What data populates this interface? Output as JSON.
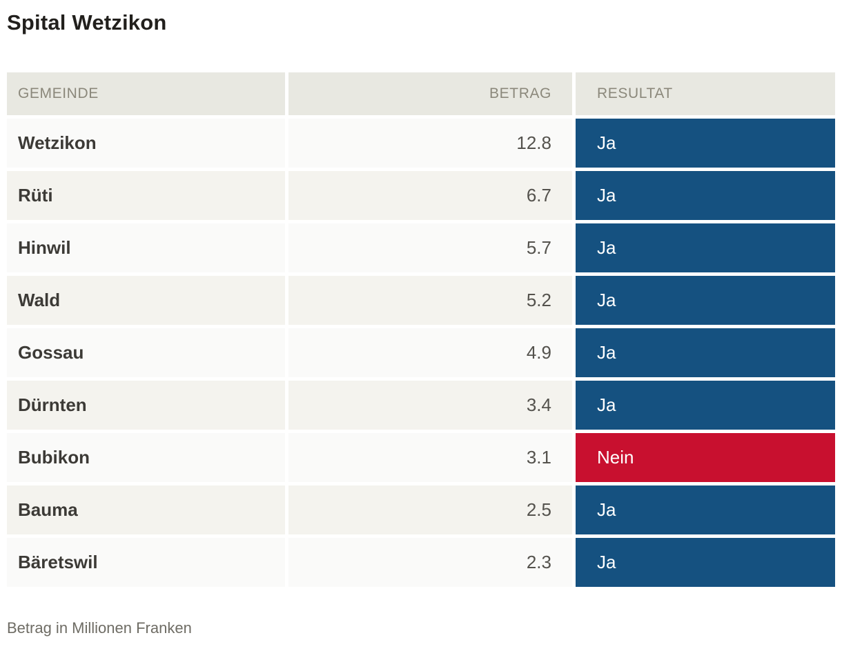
{
  "title": "Spital Wetzikon",
  "table": {
    "columns": {
      "gemeinde": "GEMEINDE",
      "betrag": "BETRAG",
      "resultat": "RESULTAT"
    },
    "rows": [
      {
        "gemeinde": "Wetzikon",
        "betrag": "12.8",
        "resultat": "Ja"
      },
      {
        "gemeinde": "Rüti",
        "betrag": "6.7",
        "resultat": "Ja"
      },
      {
        "gemeinde": "Hinwil",
        "betrag": "5.7",
        "resultat": "Ja"
      },
      {
        "gemeinde": "Wald",
        "betrag": "5.2",
        "resultat": "Ja"
      },
      {
        "gemeinde": "Gossau",
        "betrag": "4.9",
        "resultat": "Ja"
      },
      {
        "gemeinde": "Dürnten",
        "betrag": "3.4",
        "resultat": "Ja"
      },
      {
        "gemeinde": "Bubikon",
        "betrag": "3.1",
        "resultat": "Nein"
      },
      {
        "gemeinde": "Bauma",
        "betrag": "2.5",
        "resultat": "Ja"
      },
      {
        "gemeinde": "Bäretswil",
        "betrag": "2.3",
        "resultat": "Ja"
      }
    ]
  },
  "colors": {
    "Ja": "#155180",
    "Nein": "#c8102f"
  },
  "footnote": "Betrag in Millionen Franken",
  "chart_data": {
    "type": "table",
    "title": "Spital Wetzikon",
    "columns": [
      "GEMEINDE",
      "BETRAG",
      "RESULTAT"
    ],
    "categories": [
      "Wetzikon",
      "Rüti",
      "Hinwil",
      "Wald",
      "Gossau",
      "Dürnten",
      "Bubikon",
      "Bauma",
      "Bäretswil"
    ],
    "values": [
      12.8,
      6.7,
      5.7,
      5.2,
      4.9,
      3.4,
      3.1,
      2.5,
      2.3
    ],
    "results": [
      "Ja",
      "Ja",
      "Ja",
      "Ja",
      "Ja",
      "Ja",
      "Nein",
      "Ja",
      "Ja"
    ],
    "value_unit_note": "Betrag in Millionen Franken",
    "result_colors": {
      "Ja": "#155180",
      "Nein": "#c8102f"
    }
  }
}
